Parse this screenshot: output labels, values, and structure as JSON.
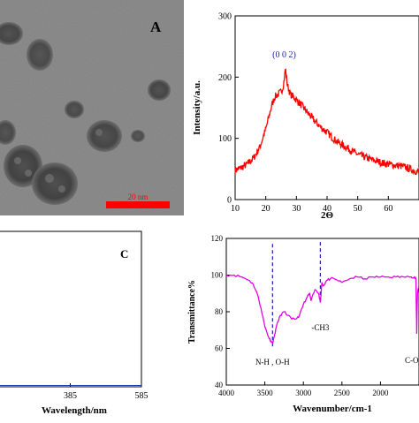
{
  "panels": {
    "a": {
      "letter": "A",
      "scale_bar_label": "20 nm",
      "image_description_colors": {
        "background": "#8c8c8c",
        "particle": "#3c3c3c",
        "scale_bar": "#ff0000"
      }
    },
    "c": {
      "letter": "C"
    }
  },
  "chart_data": [
    {
      "type": "line",
      "title": "",
      "xlabel": "2Θ",
      "ylabel": "Intensity/a.u.",
      "xlim": [
        10,
        70
      ],
      "ylim": [
        0,
        300
      ],
      "xticks": [
        10,
        20,
        30,
        40,
        50,
        60
      ],
      "yticks": [
        0,
        100,
        200,
        300
      ],
      "color": "#ff0000",
      "annotations": [
        {
          "text": "(0 0 2)",
          "x": 26,
          "color": "#1a1ab0"
        }
      ],
      "series": [
        {
          "x": [
            10,
            12,
            14,
            16,
            18,
            20,
            21,
            22,
            23,
            24,
            25,
            25.5,
            26,
            26.4,
            27,
            28,
            29,
            30,
            32,
            34,
            36,
            38,
            40,
            42,
            44,
            46,
            48,
            50,
            52,
            54,
            56,
            58,
            60,
            62,
            64,
            66,
            68,
            70
          ],
          "y": [
            48,
            52,
            58,
            68,
            85,
            115,
            135,
            155,
            168,
            172,
            176,
            182,
            195,
            215,
            188,
            172,
            168,
            163,
            152,
            140,
            128,
            118,
            110,
            100,
            92,
            86,
            80,
            74,
            70,
            66,
            63,
            60,
            58,
            56,
            55,
            52,
            48,
            45
          ]
        }
      ]
    },
    {
      "type": "line",
      "title": "",
      "xlabel": "Wavelength/nm",
      "ylabel": "",
      "xlim": [
        185,
        585
      ],
      "xticks": [
        385,
        585
      ],
      "color": "#1f3fa0",
      "series": [
        {
          "x": [
            185,
            585
          ],
          "y": [
            0,
            0
          ]
        }
      ]
    },
    {
      "type": "line",
      "title": "",
      "xlabel": "Wavenumber/cm-1",
      "ylabel": "Transmittance%",
      "xlim": [
        4000,
        1500
      ],
      "ylim": [
        40,
        120
      ],
      "xticks": [
        4000,
        3500,
        3000,
        2500,
        2000
      ],
      "yticks": [
        40,
        60,
        80,
        100,
        120
      ],
      "color": "#e600e6",
      "annotations": [
        {
          "text": "N-H , O-H",
          "x": 3400,
          "color": "#000000"
        },
        {
          "text": "-CH3",
          "x": 2780,
          "color": "#000000"
        },
        {
          "text": "C-O",
          "x": 1530,
          "color": "#000000"
        }
      ],
      "series": [
        {
          "x": [
            4000,
            3900,
            3800,
            3700,
            3650,
            3600,
            3550,
            3500,
            3450,
            3420,
            3400,
            3380,
            3350,
            3300,
            3250,
            3200,
            3150,
            3100,
            3050,
            3000,
            2950,
            2920,
            2900,
            2850,
            2800,
            2780,
            2760,
            2740,
            2700,
            2650,
            2600,
            2500,
            2400,
            2300,
            2200,
            2100,
            2000,
            1900,
            1800,
            1700,
            1600,
            1560,
            1540,
            1530,
            1520,
            1500
          ],
          "y": [
            100,
            100,
            99,
            97,
            95,
            90,
            82,
            72,
            66,
            64,
            63,
            66,
            72,
            78,
            80,
            78,
            76,
            76,
            78,
            84,
            88,
            90,
            86,
            92,
            90,
            85,
            96,
            94,
            97,
            98,
            98,
            96,
            98,
            99,
            98,
            99,
            99,
            99,
            99,
            99,
            99,
            99,
            98,
            68,
            90,
            95
          ]
        }
      ]
    }
  ]
}
